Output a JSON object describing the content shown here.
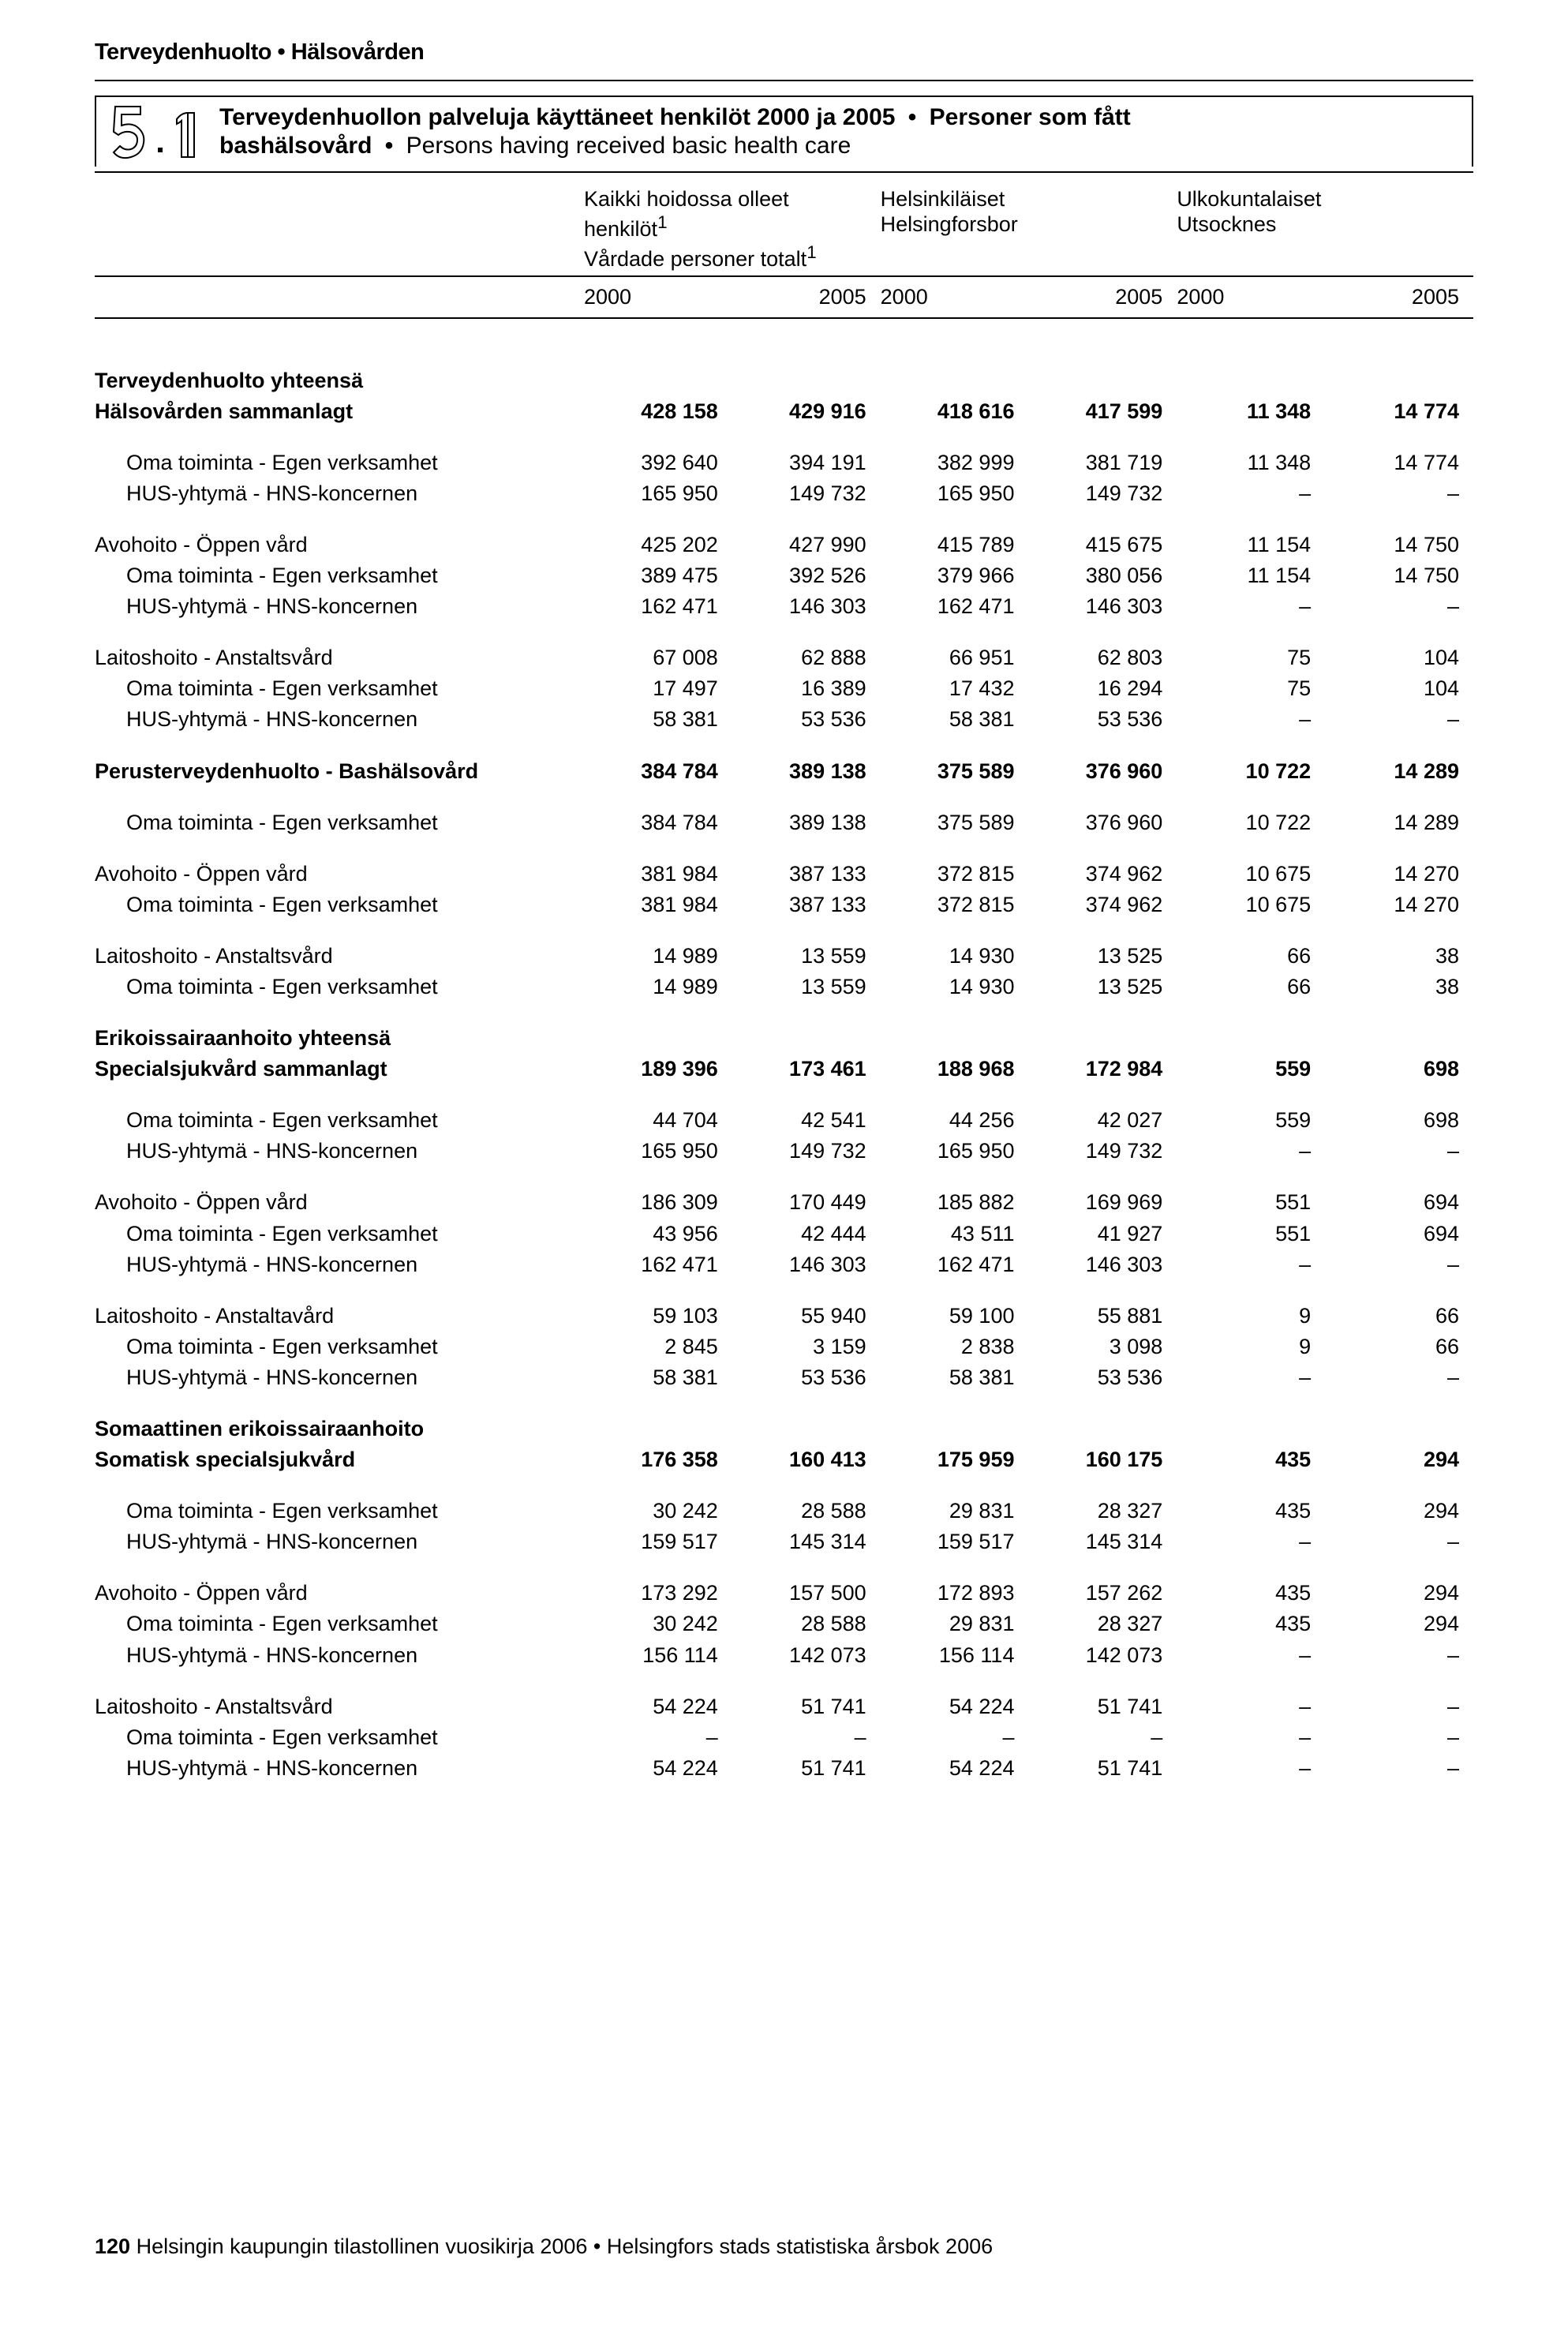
{
  "top_header": "Terveydenhuolto • Hälsovården",
  "section_number_main": "5",
  "section_number_sub": "1",
  "title": {
    "l1_b1": "Terveydenhuollon palveluja käyttäneet henkilöt 2000 ja 2005",
    "l1_b2": "Personer som fått",
    "l2_b": "bashälsovård",
    "l2_n": "Persons having received basic health care"
  },
  "columns": {
    "group1_l1": "Kaikki hoidossa olleet",
    "group1_l2": "henkilöt",
    "group1_l3": "Vårdade personer totalt",
    "group1_sup": "1",
    "group2_l1": "Helsinkiläiset",
    "group2_l2": "Helsingforsbor",
    "group3_l1": "Ulkokuntalaiset",
    "group3_l2": "Utsocknes",
    "y2000": "2000",
    "y2005": "2005"
  },
  "table": {
    "background_color": "#ffffff",
    "text_color": "#000000",
    "rule_color": "#000000",
    "font_size": 27,
    "bold_weight": 900,
    "cols": [
      "label",
      "2000_a",
      "2005_a",
      "2000_b",
      "2005_b",
      "2000_c",
      "2005_c"
    ],
    "rows": [
      {
        "type": "bigspacer"
      },
      {
        "type": "data",
        "bold": true,
        "label": "Terveydenhuolto yhteensä",
        "v": [
          "",
          "",
          "",
          "",
          "",
          ""
        ]
      },
      {
        "type": "data",
        "bold": true,
        "label": "Hälsovården sammanlagt",
        "v": [
          "428 158",
          "429 916",
          "418 616",
          "417 599",
          "11 348",
          "14 774"
        ]
      },
      {
        "type": "spacer"
      },
      {
        "type": "data",
        "indent": true,
        "label": "Oma toiminta - Egen verksamhet",
        "v": [
          "392 640",
          "394 191",
          "382 999",
          "381 719",
          "11 348",
          "14 774"
        ]
      },
      {
        "type": "data",
        "indent": true,
        "label": "HUS-yhtymä - HNS-koncernen",
        "v": [
          "165 950",
          "149 732",
          "165 950",
          "149 732",
          "–",
          "–"
        ]
      },
      {
        "type": "spacer"
      },
      {
        "type": "data",
        "label": "Avohoito - Öppen vård",
        "v": [
          "425 202",
          "427 990",
          "415 789",
          "415 675",
          "11 154",
          "14 750"
        ]
      },
      {
        "type": "data",
        "indent": true,
        "label": "Oma toiminta - Egen verksamhet",
        "v": [
          "389 475",
          "392 526",
          "379 966",
          "380 056",
          "11 154",
          "14 750"
        ]
      },
      {
        "type": "data",
        "indent": true,
        "label": "HUS-yhtymä - HNS-koncernen",
        "v": [
          "162 471",
          "146 303",
          "162 471",
          "146 303",
          "–",
          "–"
        ]
      },
      {
        "type": "spacer"
      },
      {
        "type": "data",
        "label": "Laitoshoito - Anstaltsvård",
        "v": [
          "67 008",
          "62 888",
          "66 951",
          "62 803",
          "75",
          "104"
        ]
      },
      {
        "type": "data",
        "indent": true,
        "label": "Oma toiminta - Egen verksamhet",
        "v": [
          "17 497",
          "16 389",
          "17 432",
          "16 294",
          "75",
          "104"
        ]
      },
      {
        "type": "data",
        "indent": true,
        "label": "HUS-yhtymä - HNS-koncernen",
        "v": [
          "58 381",
          "53 536",
          "58 381",
          "53 536",
          "–",
          "–"
        ]
      },
      {
        "type": "spacer"
      },
      {
        "type": "data",
        "bold": true,
        "label": "Perusterveydenhuolto - Bashälsovård",
        "v": [
          "384 784",
          "389 138",
          "375 589",
          "376 960",
          "10 722",
          "14 289"
        ]
      },
      {
        "type": "spacer"
      },
      {
        "type": "data",
        "indent": true,
        "label": "Oma toiminta - Egen verksamhet",
        "v": [
          "384 784",
          "389 138",
          "375 589",
          "376 960",
          "10 722",
          "14 289"
        ]
      },
      {
        "type": "spacer"
      },
      {
        "type": "data",
        "label": "Avohoito - Öppen vård",
        "v": [
          "381 984",
          "387 133",
          "372 815",
          "374 962",
          "10 675",
          "14 270"
        ]
      },
      {
        "type": "data",
        "indent": true,
        "label": "Oma toiminta - Egen verksamhet",
        "v": [
          "381 984",
          "387 133",
          "372 815",
          "374 962",
          "10 675",
          "14 270"
        ]
      },
      {
        "type": "spacer"
      },
      {
        "type": "data",
        "label": "Laitoshoito - Anstaltsvård",
        "v": [
          "14 989",
          "13 559",
          "14 930",
          "13 525",
          "66",
          "38"
        ]
      },
      {
        "type": "data",
        "indent": true,
        "label": "Oma toiminta - Egen verksamhet",
        "v": [
          "14 989",
          "13 559",
          "14 930",
          "13 525",
          "66",
          "38"
        ]
      },
      {
        "type": "spacer"
      },
      {
        "type": "data",
        "bold": true,
        "label": "Erikoissairaanhoito yhteensä",
        "v": [
          "",
          "",
          "",
          "",
          "",
          ""
        ]
      },
      {
        "type": "data",
        "bold": true,
        "label": "Specialsjukvård sammanlagt",
        "v": [
          "189 396",
          "173 461",
          "188 968",
          "172 984",
          "559",
          "698"
        ]
      },
      {
        "type": "spacer"
      },
      {
        "type": "data",
        "indent": true,
        "label": "Oma toiminta - Egen verksamhet",
        "v": [
          "44 704",
          "42 541",
          "44 256",
          "42 027",
          "559",
          "698"
        ]
      },
      {
        "type": "data",
        "indent": true,
        "label": "HUS-yhtymä - HNS-koncernen",
        "v": [
          "165 950",
          "149 732",
          "165 950",
          "149 732",
          "–",
          "–"
        ]
      },
      {
        "type": "spacer"
      },
      {
        "type": "data",
        "label": "Avohoito - Öppen vård",
        "v": [
          "186 309",
          "170 449",
          "185 882",
          "169 969",
          "551",
          "694"
        ]
      },
      {
        "type": "data",
        "indent": true,
        "label": "Oma toiminta - Egen verksamhet",
        "v": [
          "43 956",
          "42 444",
          "43 511",
          "41 927",
          "551",
          "694"
        ]
      },
      {
        "type": "data",
        "indent": true,
        "label": "HUS-yhtymä - HNS-koncernen",
        "v": [
          "162 471",
          "146 303",
          "162 471",
          "146 303",
          "–",
          "–"
        ]
      },
      {
        "type": "spacer"
      },
      {
        "type": "data",
        "label": "Laitoshoito - Anstaltavård",
        "v": [
          "59 103",
          "55 940",
          "59 100",
          "55 881",
          "9",
          "66"
        ]
      },
      {
        "type": "data",
        "indent": true,
        "label": "Oma toiminta - Egen verksamhet",
        "v": [
          "2 845",
          "3 159",
          "2 838",
          "3 098",
          "9",
          "66"
        ]
      },
      {
        "type": "data",
        "indent": true,
        "label": "HUS-yhtymä - HNS-koncernen",
        "v": [
          "58 381",
          "53 536",
          "58 381",
          "53 536",
          "–",
          "–"
        ]
      },
      {
        "type": "spacer"
      },
      {
        "type": "data",
        "bold": true,
        "label": "Somaattinen erikoissairaanhoito",
        "v": [
          "",
          "",
          "",
          "",
          "",
          ""
        ]
      },
      {
        "type": "data",
        "bold": true,
        "label": "Somatisk specialsjukvård",
        "v": [
          "176 358",
          "160 413",
          "175 959",
          "160 175",
          "435",
          "294"
        ]
      },
      {
        "type": "spacer"
      },
      {
        "type": "data",
        "indent": true,
        "label": "Oma toiminta - Egen verksamhet",
        "v": [
          "30 242",
          "28 588",
          "29 831",
          "28 327",
          "435",
          "294"
        ]
      },
      {
        "type": "data",
        "indent": true,
        "label": "HUS-yhtymä - HNS-koncernen",
        "v": [
          "159 517",
          "145 314",
          "159 517",
          "145 314",
          "–",
          "–"
        ]
      },
      {
        "type": "spacer"
      },
      {
        "type": "data",
        "label": "Avohoito - Öppen vård",
        "v": [
          "173 292",
          "157 500",
          "172 893",
          "157 262",
          "435",
          "294"
        ]
      },
      {
        "type": "data",
        "indent": true,
        "label": "Oma toiminta - Egen verksamhet",
        "v": [
          "30 242",
          "28 588",
          "29 831",
          "28 327",
          "435",
          "294"
        ]
      },
      {
        "type": "data",
        "indent": true,
        "label": "HUS-yhtymä - HNS-koncernen",
        "v": [
          "156 114",
          "142 073",
          "156 114",
          "142 073",
          "–",
          "–"
        ]
      },
      {
        "type": "spacer"
      },
      {
        "type": "data",
        "label": "Laitoshoito - Anstaltsvård",
        "v": [
          "54 224",
          "51 741",
          "54 224",
          "51 741",
          "–",
          "–"
        ]
      },
      {
        "type": "data",
        "indent": true,
        "label": "Oma toiminta - Egen verksamhet",
        "v": [
          "–",
          "–",
          "–",
          "–",
          "–",
          "–"
        ]
      },
      {
        "type": "data",
        "indent": true,
        "label": "HUS-yhtymä - HNS-koncernen",
        "v": [
          "54 224",
          "51 741",
          "54 224",
          "51 741",
          "–",
          "–"
        ]
      }
    ]
  },
  "footer": {
    "page": "120",
    "text": "Helsingin kaupungin tilastollinen vuosikirja 2006 • Helsingfors stads statistiska årsbok 2006"
  }
}
